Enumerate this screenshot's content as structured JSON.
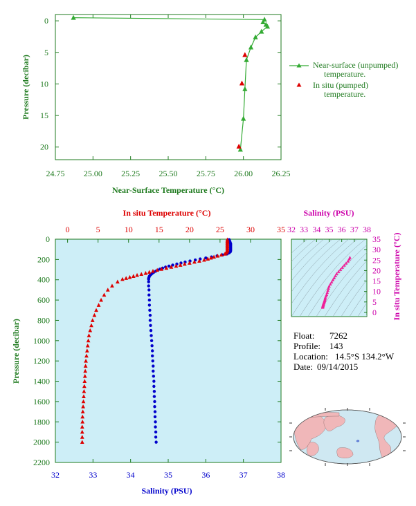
{
  "chart_data": [
    {
      "id": "near_surface",
      "type": "line",
      "xlabel": "Near-Surface Temperature (°C)",
      "ylabel": "Pressure (decibar)",
      "xlim": [
        24.75,
        26.25
      ],
      "ylim": [
        22,
        -1
      ],
      "xticks": [
        "24.75",
        "25.00",
        "25.25",
        "25.50",
        "25.75",
        "26.00",
        "26.25"
      ],
      "yticks": [
        "0",
        "5",
        "10",
        "15",
        "20"
      ],
      "grid": false,
      "legend_position": "right",
      "series": [
        {
          "name": "Near-surface (unpumped) temperature.",
          "color": "#33aa33",
          "marker": "triangle-up",
          "x": [
            24.87,
            26.14,
            26.13,
            26.15,
            26.16,
            26.12,
            26.08,
            26.05,
            26.02,
            26.01,
            26.0,
            25.98
          ],
          "y": [
            -0.5,
            -0.2,
            0.2,
            0.6,
            0.9,
            1.7,
            2.6,
            4.2,
            6.2,
            10.8,
            15.5,
            20.4
          ]
        },
        {
          "name": "In situ (pumped) temperature.",
          "color": "#dd0000",
          "marker": "triangle-up",
          "x": [
            26.01,
            25.99,
            25.97
          ],
          "y": [
            5.4,
            9.9,
            19.9
          ]
        }
      ]
    },
    {
      "id": "profile",
      "type": "scatter",
      "xlabel_top": "In situ Temperature (°C)",
      "xlabel_bottom": "Salinity (PSU)",
      "ylabel": "Pressure (decibar)",
      "temp_lim": [
        -2,
        35
      ],
      "sal_lim": [
        32,
        38
      ],
      "ylim": [
        2200,
        0
      ],
      "temp_ticks": [
        "0",
        "5",
        "10",
        "15",
        "20",
        "25",
        "30",
        "35"
      ],
      "sal_ticks": [
        "32",
        "33",
        "34",
        "35",
        "36",
        "37",
        "38"
      ],
      "yticks": [
        "0",
        "200",
        "400",
        "600",
        "800",
        "1000",
        "1200",
        "1400",
        "1600",
        "1800",
        "2000",
        "2200"
      ],
      "background": "#cdeef7",
      "temperature": {
        "color": "#dd0000",
        "marker": "triangle-up",
        "pressure": [
          5,
          15,
          25,
          35,
          45,
          55,
          65,
          75,
          85,
          95,
          105,
          115,
          125,
          135,
          145,
          155,
          165,
          175,
          185,
          195,
          205,
          215,
          225,
          235,
          245,
          255,
          265,
          275,
          285,
          295,
          305,
          315,
          325,
          335,
          345,
          355,
          365,
          375,
          385,
          395,
          420,
          460,
          500,
          550,
          600,
          650,
          700,
          750,
          800,
          850,
          900,
          950,
          1000,
          1050,
          1100,
          1150,
          1200,
          1250,
          1300,
          1350,
          1400,
          1450,
          1500,
          1550,
          1600,
          1650,
          1700,
          1750,
          1800,
          1850,
          1900,
          1950,
          2000
        ],
        "value": [
          26.2,
          26.2,
          26.2,
          26.2,
          26.2,
          26.2,
          26.2,
          26.2,
          26.2,
          26.2,
          26.2,
          26.2,
          26.1,
          26.0,
          25.8,
          25.2,
          24.6,
          24.0,
          23.5,
          23.0,
          22.4,
          21.6,
          20.8,
          20.0,
          19.2,
          18.5,
          17.8,
          17.0,
          16.2,
          15.4,
          14.7,
          14.0,
          13.4,
          12.8,
          12.1,
          11.4,
          10.8,
          10.2,
          9.6,
          9.0,
          8.2,
          7.3,
          6.6,
          6.0,
          5.5,
          5.1,
          4.7,
          4.4,
          4.1,
          3.9,
          3.7,
          3.5,
          3.4,
          3.3,
          3.2,
          3.1,
          3.0,
          2.95,
          2.9,
          2.85,
          2.8,
          2.75,
          2.7,
          2.65,
          2.6,
          2.55,
          2.5,
          2.45,
          2.45,
          2.4,
          2.4,
          2.4,
          2.4
        ]
      },
      "salinity": {
        "color": "#0000cc",
        "marker": "circle",
        "pressure": [
          5,
          15,
          25,
          35,
          45,
          55,
          65,
          75,
          85,
          95,
          105,
          115,
          125,
          135,
          145,
          155,
          165,
          175,
          185,
          195,
          205,
          215,
          225,
          235,
          245,
          255,
          265,
          275,
          285,
          295,
          305,
          315,
          325,
          335,
          345,
          355,
          365,
          375,
          385,
          395,
          420,
          460,
          500,
          550,
          600,
          650,
          700,
          750,
          800,
          850,
          900,
          950,
          1000,
          1050,
          1100,
          1150,
          1200,
          1250,
          1300,
          1350,
          1400,
          1450,
          1500,
          1550,
          1600,
          1650,
          1700,
          1750,
          1800,
          1850,
          1900,
          1950,
          2000
        ],
        "value": [
          36.62,
          36.63,
          36.64,
          36.65,
          36.66,
          36.66,
          36.66,
          36.66,
          36.66,
          36.66,
          36.66,
          36.66,
          36.65,
          36.62,
          36.57,
          36.45,
          36.3,
          36.15,
          36.0,
          35.85,
          35.72,
          35.58,
          35.45,
          35.34,
          35.23,
          35.12,
          35.02,
          34.93,
          34.85,
          34.78,
          34.72,
          34.67,
          34.62,
          34.58,
          34.55,
          34.52,
          34.5,
          34.49,
          34.48,
          34.48,
          34.48,
          34.48,
          34.49,
          34.49,
          34.5,
          34.5,
          34.51,
          34.52,
          34.52,
          34.53,
          34.54,
          34.55,
          34.56,
          34.57,
          34.58,
          34.58,
          34.59,
          34.6,
          34.6,
          34.61,
          34.62,
          34.62,
          34.63,
          34.63,
          34.64,
          34.64,
          34.65,
          34.65,
          34.66,
          34.66,
          34.67,
          34.67,
          34.68
        ]
      }
    },
    {
      "id": "ts_diagram",
      "type": "scatter",
      "xlabel": "Salinity (PSU)",
      "ylabel": "In situ Temperature (°C)",
      "xlim": [
        32,
        38
      ],
      "ylim": [
        -2,
        35
      ],
      "xticks": [
        "32",
        "33",
        "34",
        "35",
        "36",
        "37",
        "38"
      ],
      "yticks": [
        "0",
        "5",
        "10",
        "15",
        "20",
        "25",
        "30",
        "35"
      ],
      "color": "#ee2299",
      "salinity": [
        36.65,
        36.6,
        36.5,
        36.35,
        36.2,
        36.05,
        35.9,
        35.75,
        35.6,
        35.5,
        35.4,
        35.3,
        35.2,
        35.1,
        35.0,
        34.95,
        34.9,
        34.85,
        34.8,
        34.75,
        34.7,
        34.68,
        34.66,
        34.64,
        34.62,
        34.6,
        34.58,
        34.56,
        34.55,
        34.54,
        34.53,
        34.52,
        34.51,
        34.5,
        34.5,
        34.49,
        34.49
      ],
      "temperature": [
        26.2,
        25.5,
        24.5,
        23.5,
        22.5,
        21.5,
        20.5,
        19.5,
        18.5,
        17.5,
        16.5,
        15.5,
        14.5,
        13.5,
        12.5,
        11.5,
        10.5,
        9.5,
        8.5,
        7.8,
        7.1,
        6.5,
        6.0,
        5.6,
        5.2,
        4.9,
        4.6,
        4.3,
        4.0,
        3.8,
        3.6,
        3.4,
        3.2,
        3.0,
        2.8,
        2.6,
        2.4
      ]
    }
  ],
  "info": {
    "float_label": "Float:",
    "float_value": "7262",
    "profile_label": "Profile:",
    "profile_value": "143",
    "location_label": "Location:",
    "location_value": "14.5°S  134.2°W",
    "date_label": "Date:",
    "date_value": "09/14/2015"
  },
  "map": {
    "ocean_color": "#cfe8f2",
    "land_color": "#f0b7b9",
    "marker_color": "#1030c0"
  }
}
